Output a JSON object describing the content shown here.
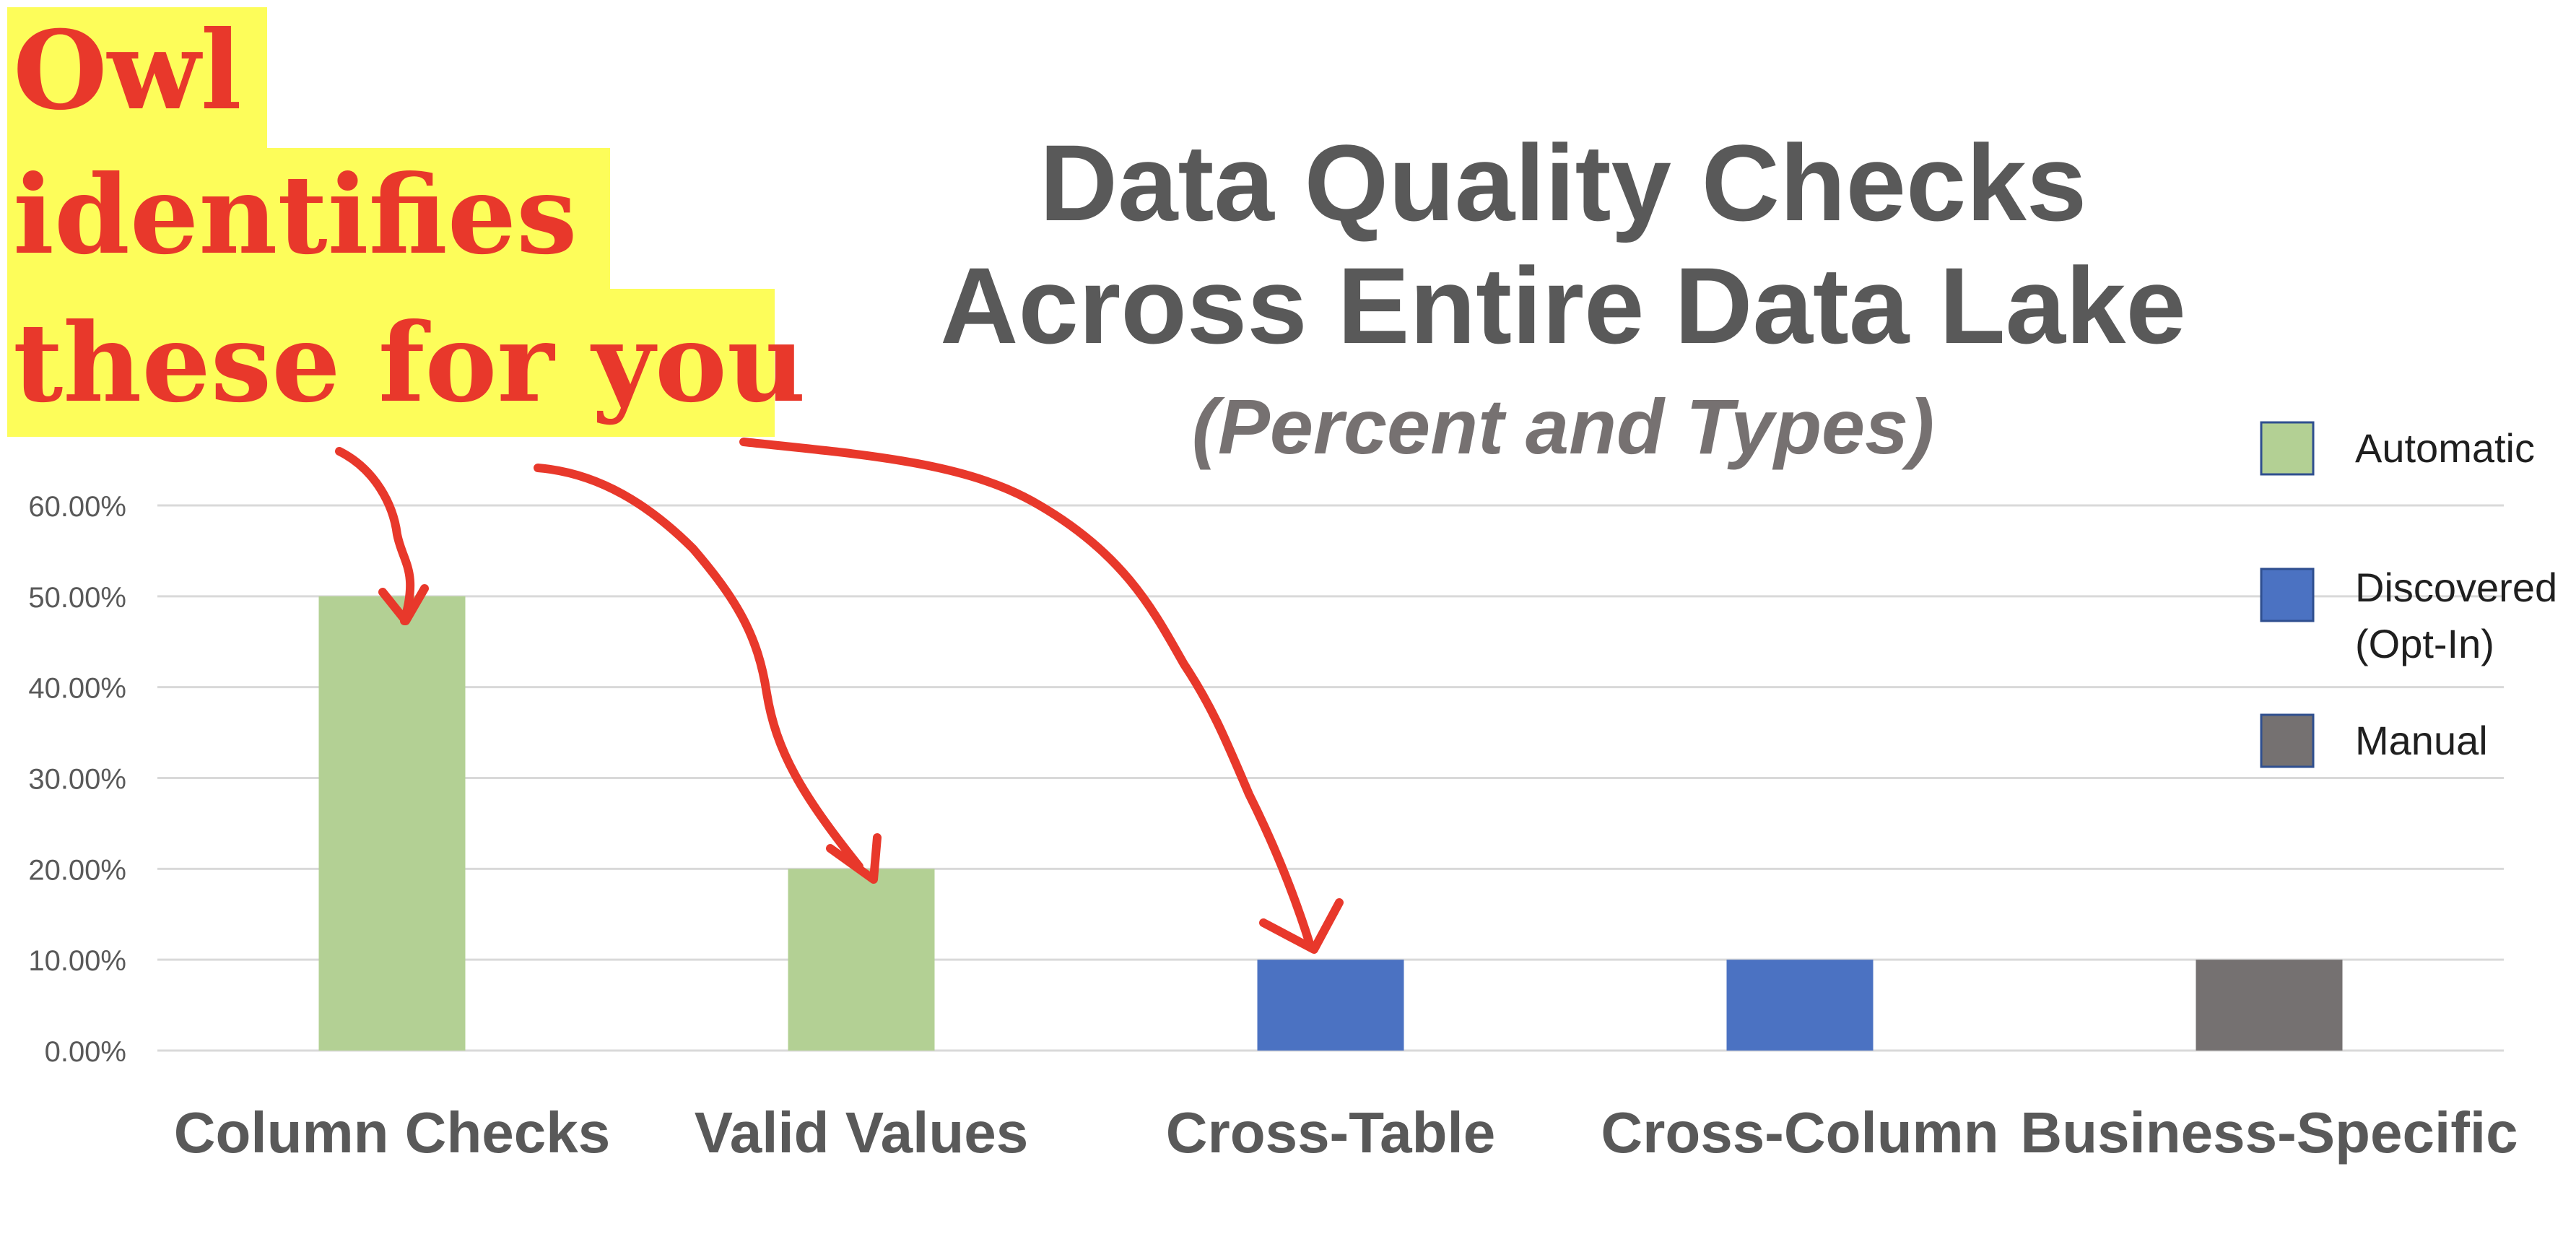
{
  "callout": {
    "lines": [
      "Owl",
      "identifies",
      "these for you"
    ],
    "text_color": "#e8382b",
    "highlight_color": "#fdfd5a",
    "arrow_color": "#e8382b"
  },
  "chart_data": {
    "type": "bar",
    "title": [
      "Data Quality Checks",
      "Across Entire Data Lake"
    ],
    "subtitle": "(Percent and Types)",
    "categories": [
      "Column Checks",
      "Valid Values",
      "Cross-Table",
      "Cross-Column",
      "Business-Specific"
    ],
    "values": [
      0.5,
      0.2,
      0.1,
      0.1,
      0.1
    ],
    "bar_types": [
      "Automatic",
      "Automatic",
      "Discovered (Opt-In)",
      "Discovered (Opt-In)",
      "Manual"
    ],
    "ylim": [
      0,
      0.6
    ],
    "yticks": [
      0,
      0.1,
      0.2,
      0.3,
      0.4,
      0.5,
      0.6
    ],
    "ytick_labels": [
      "0.00%",
      "10.00%",
      "20.00%",
      "30.00%",
      "40.00%",
      "50.00%",
      "60.00%"
    ],
    "grid": true,
    "legend": {
      "placement": "right",
      "entries": [
        {
          "lines": [
            "Automatic"
          ],
          "color": "#b3d094"
        },
        {
          "lines": [
            "Discovered",
            "(Opt-In)"
          ],
          "color": "#4b72c2"
        },
        {
          "lines": [
            "Manual"
          ],
          "color": "#757171"
        }
      ]
    }
  }
}
